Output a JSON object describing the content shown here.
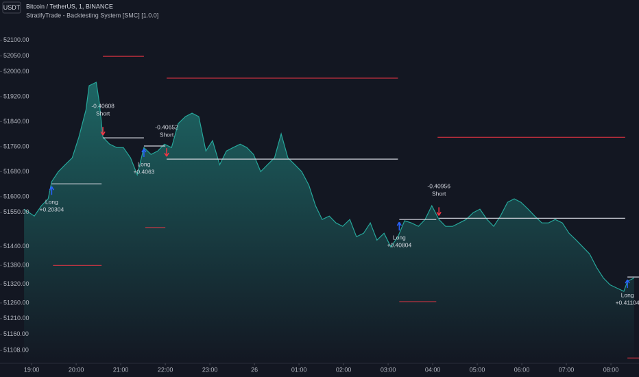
{
  "header": {
    "currency": "USDT",
    "symbol": "Bitcoin / TetherUS, 1, BINANCE",
    "indicator": "StratifyTrade - Backtesting System [SMC] [1.0.0]"
  },
  "chart_data": {
    "type": "line",
    "color": "#26a69a",
    "x": [
      -0.17,
      0.06,
      0.22,
      0.37,
      0.45,
      0.6,
      0.75,
      0.91,
      1.06,
      1.22,
      1.29,
      1.45,
      1.52,
      1.6,
      1.75,
      1.91,
      2.06,
      2.22,
      2.37,
      2.52,
      2.68,
      2.83,
      2.98,
      3.14,
      3.29,
      3.45,
      3.6,
      3.75,
      3.91,
      4.06,
      4.22,
      4.37,
      4.52,
      4.68,
      4.83,
      4.98,
      5.14,
      5.29,
      5.45,
      5.6,
      5.75,
      5.91,
      6.06,
      6.22,
      6.37,
      6.52,
      6.68,
      6.83,
      6.98,
      7.14,
      7.29,
      7.45,
      7.6,
      7.75,
      7.91,
      8.06,
      8.22,
      8.37,
      8.52,
      8.68,
      8.83,
      8.98,
      9.14,
      9.29,
      9.45,
      9.6,
      9.75,
      9.91,
      10.06,
      10.22,
      10.37,
      10.52,
      10.68,
      10.83,
      10.98,
      11.14,
      11.29,
      11.45,
      11.6,
      11.75,
      11.91,
      12.06,
      12.22,
      12.37,
      12.52,
      12.68,
      12.83,
      12.98,
      13.14,
      13.29,
      13.37,
      13.52
    ],
    "values": [
      51560,
      51538,
      51571,
      51593,
      51648,
      51680,
      51702,
      51724,
      51790,
      51878,
      51955,
      51966,
      51900,
      51790,
      51768,
      51757,
      51757,
      51724,
      51670,
      51757,
      51735,
      51746,
      51768,
      51757,
      51834,
      51856,
      51867,
      51856,
      51746,
      51779,
      51702,
      51746,
      51757,
      51768,
      51757,
      51735,
      51680,
      51702,
      51724,
      51801,
      51724,
      51702,
      51680,
      51637,
      51571,
      51527,
      51538,
      51516,
      51505,
      51527,
      51472,
      51483,
      51516,
      51461,
      51483,
      51439,
      51472,
      51523,
      51516,
      51505,
      51527,
      51571,
      51527,
      51505,
      51505,
      51516,
      51527,
      51549,
      51560,
      51527,
      51505,
      51538,
      51582,
      51593,
      51582,
      51560,
      51538,
      51516,
      51516,
      51527,
      51516,
      51483,
      51461,
      51439,
      51417,
      51373,
      51340,
      51318,
      51307,
      51297,
      51329,
      51340
    ],
    "xlim": [
      -0.71,
      13.63
    ],
    "ylim": [
      51067,
      52229
    ],
    "xticks": [
      {
        "value": 0,
        "label": "19:00"
      },
      {
        "value": 1,
        "label": "20:00"
      },
      {
        "value": 2,
        "label": "21:00"
      },
      {
        "value": 3,
        "label": "22:00"
      },
      {
        "value": 4,
        "label": "23:00"
      },
      {
        "value": 5,
        "label": "26"
      },
      {
        "value": 6,
        "label": "01:00"
      },
      {
        "value": 7,
        "label": "02:00"
      },
      {
        "value": 8,
        "label": "03:00"
      },
      {
        "value": 9,
        "label": "04:00"
      },
      {
        "value": 10,
        "label": "05:00"
      },
      {
        "value": 11,
        "label": "06:00"
      },
      {
        "value": 12,
        "label": "07:00"
      },
      {
        "value": 13,
        "label": "08:00"
      }
    ],
    "yticks": [
      {
        "value": 52100,
        "label": "52100.00"
      },
      {
        "value": 52050,
        "label": "52050.00"
      },
      {
        "value": 52000,
        "label": "52000.00"
      },
      {
        "value": 51920,
        "label": "51920.00"
      },
      {
        "value": 51840,
        "label": "51840.00"
      },
      {
        "value": 51760,
        "label": "51760.00"
      },
      {
        "value": 51680,
        "label": "51680.00"
      },
      {
        "value": 51600,
        "label": "51600.00"
      },
      {
        "value": 51550,
        "label": "51550.00"
      },
      {
        "value": 51440,
        "label": "51440.00"
      },
      {
        "value": 51380,
        "label": "51380.00"
      },
      {
        "value": 51320,
        "label": "51320.00"
      },
      {
        "value": 51260,
        "label": "51260.00"
      },
      {
        "value": 51210,
        "label": "51210.00"
      },
      {
        "value": 51160,
        "label": "51160.00"
      },
      {
        "value": 51108,
        "label": "51108.00"
      }
    ],
    "level_color": "#f23645",
    "levels": [
      {
        "x": [
          1.6,
          2.52
        ],
        "price": 52049
      },
      {
        "x": [
          3.03,
          8.22
        ],
        "price": 51979
      },
      {
        "x": [
          0.48,
          1.57
        ],
        "price": 51380
      },
      {
        "x": [
          2.55,
          3.0
        ],
        "price": 51501
      },
      {
        "x": [
          8.25,
          9.08
        ],
        "price": 51264
      },
      {
        "x": [
          9.11,
          13.32
        ],
        "price": 51790
      },
      {
        "x": [
          13.37,
          13.63
        ],
        "price": 51084
      }
    ],
    "trade_line_color": "#d1d4dc",
    "trade_lines": [
      {
        "x": [
          0.45,
          1.57
        ],
        "price": 51641
      },
      {
        "x": [
          1.6,
          2.52
        ],
        "price": 51788
      },
      {
        "x": [
          2.52,
          3.0
        ],
        "price": 51762
      },
      {
        "x": [
          3.03,
          8.22
        ],
        "price": 51720
      },
      {
        "x": [
          8.25,
          9.08
        ],
        "price": 51527
      },
      {
        "x": [
          9.14,
          13.32
        ],
        "price": 51531
      },
      {
        "x": [
          13.37,
          13.63
        ],
        "price": 51343
      }
    ],
    "long_color": "#2962ff",
    "short_color": "#f23645",
    "trades": [
      {
        "side": "Long",
        "pnl": "+0.20304",
        "x": 0.45,
        "price": 51641
      },
      {
        "side": "Short",
        "pnl": "-0.40608",
        "x": 1.6,
        "price": 51788
      },
      {
        "side": "Long",
        "pnl": "+0.4063",
        "x": 2.52,
        "price": 51762
      },
      {
        "side": "Short",
        "pnl": "-0.40652",
        "x": 3.03,
        "price": 51720
      },
      {
        "side": "Long",
        "pnl": "+0.40804",
        "x": 8.25,
        "price": 51527
      },
      {
        "side": "Short",
        "pnl": "-0.40956",
        "x": 9.14,
        "price": 51531
      },
      {
        "side": "Long",
        "pnl": "+0.41104",
        "x": 13.37,
        "price": 51343
      }
    ]
  }
}
